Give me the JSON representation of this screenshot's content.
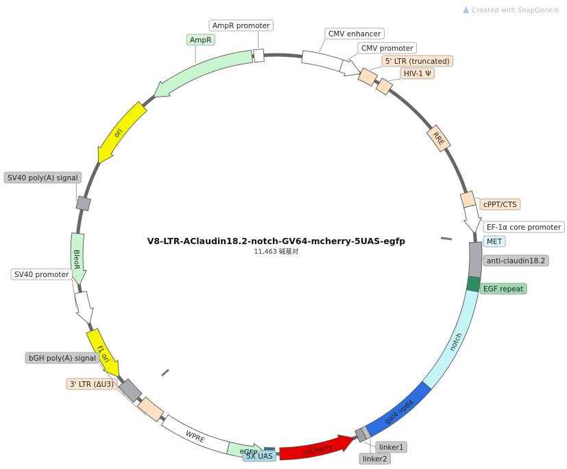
{
  "credit": {
    "text": "Created with SnapGene®",
    "icon": "snapgene-logo-icon"
  },
  "plasmid": {
    "name": "V8-LTR-AClaudin18.2-notch-GV64-mcherry-5UAS-egfp",
    "length_text": "11,463 碱基对"
  },
  "colors": {
    "backbone": "#666666",
    "white": "#ffffff",
    "promoter_green": "#c8f5cf",
    "ori_yellow": "#f5f500",
    "ltr_orange": "#fce0c2",
    "gray": "#a8acb0",
    "teal": "#2e8b62",
    "cyan": "#c6f5f8",
    "blue": "#2e6fe0",
    "red": "#e60000",
    "uas_teal": "#2a7a8c",
    "met_box": "#ddf5fb",
    "uas_box": "#a8d8e4"
  },
  "labels": [
    {
      "id": "label-amp-promoter",
      "text": "AmpR promoter",
      "bg": "#ffffff"
    },
    {
      "id": "label-ampr",
      "text": "AmpR",
      "bg": "#d6f5d8"
    },
    {
      "id": "label-cmv-enhancer",
      "text": "CMV enhancer",
      "bg": "#ffffff"
    },
    {
      "id": "label-cmv-promoter",
      "text": "CMV promoter",
      "bg": "#ffffff"
    },
    {
      "id": "label-5ltr",
      "text": "5' LTR (truncated)",
      "bg": "#fce5cc"
    },
    {
      "id": "label-hiv1",
      "text": "HIV-1 Ψ",
      "bg": "#fce5cc"
    },
    {
      "id": "label-cppt",
      "text": "cPPT/CTS",
      "bg": "#fce5cc"
    },
    {
      "id": "label-ef1a",
      "text": "EF-1α core promoter",
      "bg": "#ffffff"
    },
    {
      "id": "label-met",
      "text": "MET",
      "bg": "#ddf5fb"
    },
    {
      "id": "label-anti-claudin",
      "text": "anti-claudin18.2",
      "bg": "#c8cacc"
    },
    {
      "id": "label-egf",
      "text": "EGF repeat",
      "bg": "#9fd6b3"
    },
    {
      "id": "label-linker1",
      "text": "linker1",
      "bg": "#c8cacc"
    },
    {
      "id": "label-linker2",
      "text": "linker2",
      "bg": "#c8cacc"
    },
    {
      "id": "label-5xuas",
      "text": "5X UAS",
      "bg": "#a8d8e4"
    },
    {
      "id": "label-3ltr",
      "text": "3' LTR (ΔU3)",
      "bg": "#fce5cc"
    },
    {
      "id": "label-bgh",
      "text": "bGH poly(A) signal",
      "bg": "#c8cacc"
    },
    {
      "id": "label-sv40-promoter",
      "text": "SV40 promoter",
      "bg": "#ffffff"
    },
    {
      "id": "label-sv40-polya",
      "text": "SV40 poly(A) signal",
      "bg": "#c8cacc"
    }
  ],
  "in_feature_labels": [
    {
      "id": "feature-label-ori",
      "text": "ori"
    },
    {
      "id": "feature-label-bleor",
      "text": "BleoR"
    },
    {
      "id": "feature-label-f1ori",
      "text": "f1 ori"
    },
    {
      "id": "feature-label-rre",
      "text": "RRE"
    },
    {
      "id": "feature-label-notch",
      "text": "notch"
    },
    {
      "id": "feature-label-gal4",
      "text": "gal4-vp64"
    },
    {
      "id": "feature-label-mcherry",
      "text": "mCherry"
    },
    {
      "id": "feature-label-egfp",
      "text": "eGFP"
    },
    {
      "id": "feature-label-wpre",
      "text": "WPRE"
    }
  ]
}
